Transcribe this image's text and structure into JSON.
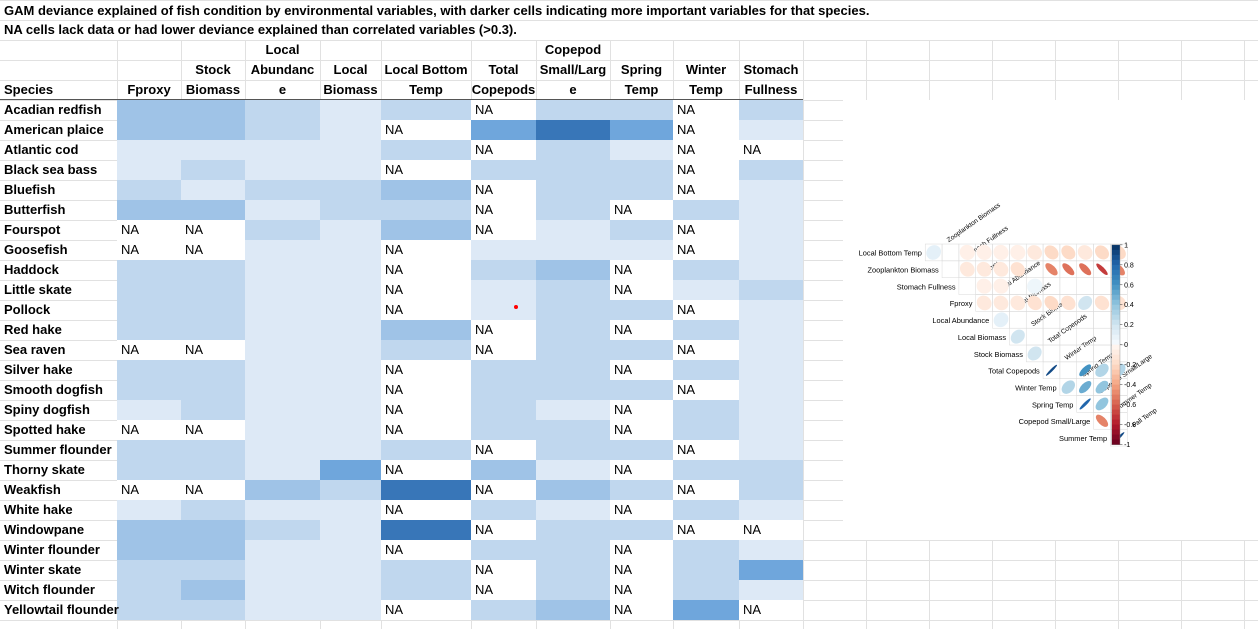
{
  "title_line1": "GAM deviance explained of fish condition by environmental variables, with darker cells indicating more important variables for that species.",
  "title_line2": "NA cells lack data or had lower deviance explained than correlated variables (>0.3).",
  "columns": [
    {
      "lines": [
        "Species"
      ]
    },
    {
      "lines": [
        "Fproxy"
      ]
    },
    {
      "lines": [
        "Stock",
        "Biomass"
      ]
    },
    {
      "lines": [
        "Local",
        "Abundanc",
        "e"
      ]
    },
    {
      "lines": [
        "Local",
        "Biomass"
      ]
    },
    {
      "lines": [
        "Local Bottom",
        "Temp"
      ]
    },
    {
      "lines": [
        "Total",
        "Copepods"
      ]
    },
    {
      "lines": [
        "Copepod",
        "Small/Larg",
        "e"
      ]
    },
    {
      "lines": [
        "Spring",
        "Temp"
      ]
    },
    {
      "lines": [
        "Winter",
        "Temp"
      ]
    },
    {
      "lines": [
        "Stomach",
        "Fullness"
      ]
    }
  ],
  "na_label": "NA",
  "colors": {
    "l0": "#ffffff",
    "l1": "#dde9f6",
    "l2": "#c0d7ee",
    "l3": "#9fc3e7",
    "l4": "#6fa6dc",
    "l5": "#3876b8",
    "l6": "#2765a8"
  },
  "rows": [
    {
      "species": "Acadian redfish",
      "levels": [
        3,
        3,
        2,
        1,
        2,
        0,
        2,
        2,
        0,
        2
      ],
      "na": [
        5,
        8
      ]
    },
    {
      "species": "American plaice",
      "levels": [
        3,
        3,
        2,
        1,
        0,
        4,
        5,
        4,
        0,
        1
      ],
      "na": [
        4,
        8
      ]
    },
    {
      "species": "Atlantic cod",
      "levels": [
        1,
        1,
        1,
        1,
        2,
        0,
        2,
        1,
        0,
        0
      ],
      "na": [
        5,
        8,
        9
      ]
    },
    {
      "species": "Black sea bass",
      "levels": [
        1,
        2,
        1,
        1,
        0,
        2,
        2,
        2,
        0,
        2
      ],
      "na": [
        4,
        8
      ]
    },
    {
      "species": "Bluefish",
      "levels": [
        2,
        1,
        2,
        2,
        3,
        0,
        2,
        2,
        0,
        1
      ],
      "na": [
        5,
        8
      ]
    },
    {
      "species": "Butterfish",
      "levels": [
        3,
        3,
        1,
        2,
        2,
        0,
        2,
        0,
        2,
        1
      ],
      "na": [
        5,
        7
      ]
    },
    {
      "species": "Fourspot",
      "levels": [
        0,
        0,
        2,
        1,
        3,
        0,
        1,
        2,
        0,
        1
      ],
      "na": [
        0,
        1,
        5,
        8
      ]
    },
    {
      "species": "Goosefish",
      "levels": [
        0,
        0,
        1,
        1,
        0,
        1,
        1,
        1,
        0,
        1
      ],
      "na": [
        0,
        1,
        4,
        8
      ]
    },
    {
      "species": "Haddock",
      "levels": [
        2,
        2,
        1,
        1,
        0,
        2,
        3,
        0,
        2,
        1
      ],
      "na": [
        4,
        7
      ]
    },
    {
      "species": "Little skate",
      "levels": [
        2,
        2,
        1,
        1,
        0,
        1,
        2,
        0,
        1,
        2
      ],
      "na": [
        4,
        7
      ]
    },
    {
      "species": "Pollock",
      "levels": [
        2,
        2,
        1,
        1,
        0,
        1,
        2,
        2,
        0,
        1
      ],
      "na": [
        4,
        8
      ]
    },
    {
      "species": "Red hake",
      "levels": [
        2,
        2,
        1,
        1,
        3,
        0,
        2,
        0,
        2,
        1
      ],
      "na": [
        5,
        7
      ]
    },
    {
      "species": "Sea raven",
      "levels": [
        0,
        0,
        1,
        1,
        2,
        0,
        2,
        2,
        0,
        1
      ],
      "na": [
        0,
        1,
        5,
        8
      ]
    },
    {
      "species": "Silver hake",
      "levels": [
        2,
        2,
        1,
        1,
        0,
        2,
        2,
        0,
        2,
        1
      ],
      "na": [
        4,
        7
      ]
    },
    {
      "species": "Smooth dogfish",
      "levels": [
        2,
        2,
        1,
        1,
        0,
        2,
        2,
        2,
        0,
        1
      ],
      "na": [
        4,
        8
      ]
    },
    {
      "species": "Spiny dogfish",
      "levels": [
        1,
        2,
        1,
        1,
        0,
        2,
        1,
        0,
        2,
        1
      ],
      "na": [
        4,
        7
      ]
    },
    {
      "species": "Spotted hake",
      "levels": [
        0,
        0,
        1,
        1,
        0,
        2,
        2,
        0,
        2,
        1
      ],
      "na": [
        0,
        1,
        4,
        7
      ]
    },
    {
      "species": "Summer flounder",
      "levels": [
        2,
        2,
        1,
        1,
        2,
        0,
        2,
        2,
        0,
        1
      ],
      "na": [
        5,
        8
      ]
    },
    {
      "species": "Thorny skate",
      "levels": [
        2,
        2,
        1,
        4,
        0,
        3,
        1,
        0,
        2,
        2
      ],
      "na": [
        4,
        7
      ]
    },
    {
      "species": "Weakfish",
      "levels": [
        0,
        0,
        3,
        2,
        5,
        0,
        3,
        2,
        0,
        2
      ],
      "na": [
        0,
        1,
        5,
        8
      ]
    },
    {
      "species": "White hake",
      "levels": [
        1,
        2,
        1,
        1,
        0,
        2,
        1,
        0,
        2,
        1
      ],
      "na": [
        4,
        7
      ]
    },
    {
      "species": "Windowpane",
      "levels": [
        3,
        3,
        2,
        1,
        5,
        0,
        2,
        2,
        0,
        0
      ],
      "na": [
        5,
        8,
        9
      ]
    },
    {
      "species": "Winter flounder",
      "levels": [
        3,
        3,
        1,
        1,
        0,
        2,
        2,
        0,
        2,
        1
      ],
      "na": [
        4,
        7
      ]
    },
    {
      "species": "Winter skate",
      "levels": [
        2,
        2,
        1,
        1,
        2,
        0,
        2,
        0,
        2,
        4
      ],
      "na": [
        5,
        7
      ]
    },
    {
      "species": "Witch flounder",
      "levels": [
        2,
        3,
        1,
        1,
        2,
        0,
        2,
        0,
        2,
        1
      ],
      "na": [
        5,
        7
      ]
    },
    {
      "species": "Yellowtail flounder",
      "levels": [
        2,
        2,
        1,
        1,
        0,
        2,
        3,
        0,
        4,
        0
      ],
      "na": [
        4,
        7,
        9
      ]
    }
  ],
  "corrplot": {
    "variables": [
      "Local Bottom Temp",
      "Zooplankton Biomass",
      "Stomach Fullness",
      "Fproxy",
      "Local Abundance",
      "Local Biomass",
      "Stock Biomass",
      "Total Copepods",
      "Winter Temp",
      "Spring Temp",
      "Copepod Small/Large",
      "Summer Temp",
      "Fall Temp"
    ],
    "colorbar_ticks": [
      "1",
      "0.8",
      "0.6",
      "0.4",
      "0.2",
      "0",
      "-0.2",
      "-0.4",
      "-0.6",
      "-0.8",
      "-1"
    ],
    "correlations": [
      [
        0,
        1,
        0.1
      ],
      [
        0,
        3,
        -0.05
      ],
      [
        0,
        4,
        -0.05
      ],
      [
        0,
        5,
        -0.05
      ],
      [
        0,
        6,
        -0.05
      ],
      [
        0,
        7,
        -0.1
      ],
      [
        0,
        8,
        -0.2
      ],
      [
        0,
        9,
        -0.2
      ],
      [
        0,
        10,
        -0.1
      ],
      [
        0,
        11,
        -0.2
      ],
      [
        0,
        12,
        -0.2
      ],
      [
        1,
        3,
        -0.1
      ],
      [
        1,
        4,
        -0.1
      ],
      [
        1,
        5,
        -0.1
      ],
      [
        1,
        6,
        -0.15
      ],
      [
        1,
        8,
        -0.5
      ],
      [
        1,
        9,
        -0.55
      ],
      [
        1,
        10,
        -0.55
      ],
      [
        1,
        11,
        -0.7
      ],
      [
        1,
        12,
        -0.5
      ],
      [
        2,
        4,
        -0.05
      ],
      [
        2,
        5,
        -0.05
      ],
      [
        2,
        7,
        0.05
      ],
      [
        3,
        4,
        -0.1
      ],
      [
        3,
        5,
        -0.1
      ],
      [
        3,
        6,
        -0.1
      ],
      [
        3,
        7,
        -0.15
      ],
      [
        3,
        8,
        -0.2
      ],
      [
        3,
        9,
        -0.15
      ],
      [
        3,
        10,
        0.2
      ],
      [
        3,
        11,
        -0.15
      ],
      [
        3,
        12,
        -0.15
      ],
      [
        4,
        5,
        0.1
      ],
      [
        5,
        6,
        0.2
      ],
      [
        6,
        7,
        0.2
      ],
      [
        7,
        8,
        0.9
      ],
      [
        7,
        10,
        0.6
      ],
      [
        7,
        11,
        0.3
      ],
      [
        7,
        12,
        0.3
      ],
      [
        8,
        9,
        0.3
      ],
      [
        8,
        10,
        0.5
      ],
      [
        8,
        11,
        0.4
      ],
      [
        9,
        10,
        0.8
      ],
      [
        9,
        11,
        0.4
      ],
      [
        10,
        11,
        -0.5
      ],
      [
        11,
        12,
        0.9
      ]
    ]
  }
}
